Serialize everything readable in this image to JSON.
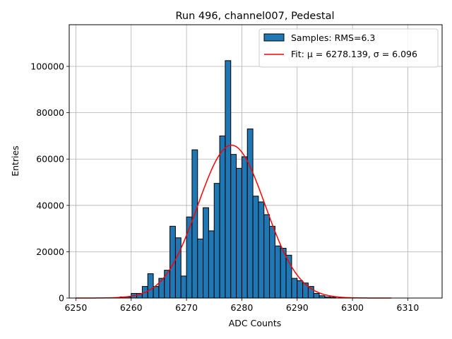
{
  "chart_data": {
    "type": "bar",
    "title": "Run 496, channel007, Pedestal",
    "xlabel": "ADC Counts",
    "ylabel": "Entries",
    "xlim": [
      6248.8,
      6316.2
    ],
    "ylim": [
      0,
      118000
    ],
    "xticks": [
      6250,
      6260,
      6270,
      6280,
      6290,
      6300,
      6310
    ],
    "yticks": [
      0,
      20000,
      40000,
      60000,
      80000,
      100000
    ],
    "grid": true,
    "legend_position": "top-right",
    "bar_color": "#1f77b4",
    "fit_color": "#ff0000",
    "bin_width": 1,
    "series": [
      {
        "name": "Samples: RMS=6.3",
        "bins": [
          {
            "x": 6258,
            "value": 500
          },
          {
            "x": 6259,
            "value": 500
          },
          {
            "x": 6260,
            "value": 2000
          },
          {
            "x": 6261,
            "value": 2000
          },
          {
            "x": 6262,
            "value": 5000
          },
          {
            "x": 6263,
            "value": 10500
          },
          {
            "x": 6264,
            "value": 5000
          },
          {
            "x": 6265,
            "value": 8500
          },
          {
            "x": 6266,
            "value": 12000
          },
          {
            "x": 6267,
            "value": 31000
          },
          {
            "x": 6268,
            "value": 26000
          },
          {
            "x": 6269,
            "value": 9500
          },
          {
            "x": 6270,
            "value": 35000
          },
          {
            "x": 6271,
            "value": 64000
          },
          {
            "x": 6272,
            "value": 25500
          },
          {
            "x": 6273,
            "value": 39000
          },
          {
            "x": 6274,
            "value": 29000
          },
          {
            "x": 6275,
            "value": 49500
          },
          {
            "x": 6276,
            "value": 70000
          },
          {
            "x": 6277,
            "value": 102500
          },
          {
            "x": 6278,
            "value": 62000
          },
          {
            "x": 6279,
            "value": 56000
          },
          {
            "x": 6280,
            "value": 61000
          },
          {
            "x": 6281,
            "value": 73000
          },
          {
            "x": 6282,
            "value": 44000
          },
          {
            "x": 6283,
            "value": 41500
          },
          {
            "x": 6284,
            "value": 36000
          },
          {
            "x": 6285,
            "value": 31000
          },
          {
            "x": 6286,
            "value": 22500
          },
          {
            "x": 6287,
            "value": 21500
          },
          {
            "x": 6288,
            "value": 18500
          },
          {
            "x": 6289,
            "value": 8500
          },
          {
            "x": 6290,
            "value": 7500
          },
          {
            "x": 6291,
            "value": 6500
          },
          {
            "x": 6292,
            "value": 5000
          },
          {
            "x": 6293,
            "value": 2000
          },
          {
            "x": 6294,
            "value": 1000
          },
          {
            "x": 6295,
            "value": 500
          },
          {
            "x": 6296,
            "value": 300
          }
        ]
      },
      {
        "name": "Fit: μ = 6278.139, σ = 6.096",
        "type": "line",
        "function": "gaussian",
        "mu": 6278.139,
        "sigma": 6.096,
        "amplitude": 66000,
        "x_range": [
          6250,
          6307
        ]
      }
    ]
  }
}
